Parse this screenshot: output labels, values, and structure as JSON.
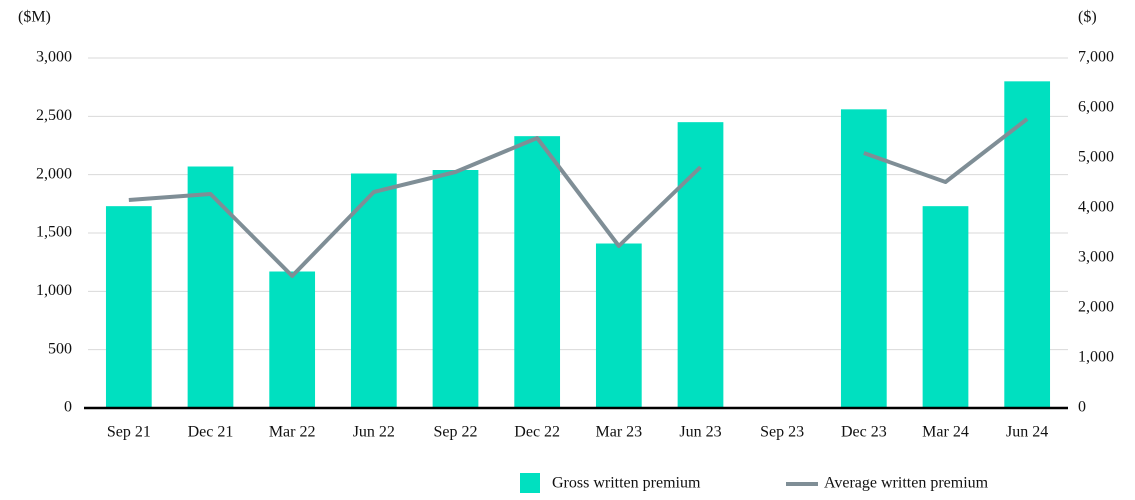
{
  "chart_data": {
    "type": "bar_line",
    "y_label": "($M)",
    "y2_label": "($)",
    "categories": [
      "Sep 21",
      "Dec 21",
      "Mar 22",
      "Jun 22",
      "Sep 22",
      "Dec 22",
      "Mar 23",
      "Jun 23",
      "Sep 23",
      "Dec 23",
      "Mar 24",
      "Jun 24"
    ],
    "series": [
      {
        "name": "Gross written premium",
        "type": "bar",
        "color": "#00e0c0",
        "values": [
          1730,
          2070,
          1170,
          2010,
          2040,
          2330,
          1410,
          2450,
          null,
          2560,
          1730,
          2800
        ]
      },
      {
        "name": "Average written premium",
        "type": "line",
        "axis": "y2",
        "color": "#7f8e96",
        "values": [
          4160,
          4280,
          2640,
          4320,
          4720,
          5400,
          3240,
          4820,
          null,
          5100,
          4520,
          5780
        ]
      }
    ],
    "ylim": [
      0,
      3000
    ],
    "yticks": [
      0,
      500,
      {
        "value": 1000,
        "label": "1,000"
      },
      {
        "value": 1500,
        "label": "1,500"
      },
      {
        "value": 2000,
        "label": "2,000"
      },
      {
        "value": 2500,
        "label": "2,500"
      },
      {
        "value": 3000,
        "label": "3,000"
      }
    ],
    "y2lim": [
      0,
      7000
    ],
    "y2ticks": [
      0,
      {
        "value": 1000,
        "label": "1,000"
      },
      {
        "value": 2000,
        "label": "2,000"
      },
      {
        "value": 3000,
        "label": "3,000"
      },
      {
        "value": 4000,
        "label": "4,000"
      },
      {
        "value": 5000,
        "label": "5,000"
      },
      {
        "value": 6000,
        "label": "6,000"
      },
      {
        "value": 7000,
        "label": "7,000"
      }
    ],
    "grid": true,
    "legend": "bottom-right"
  }
}
